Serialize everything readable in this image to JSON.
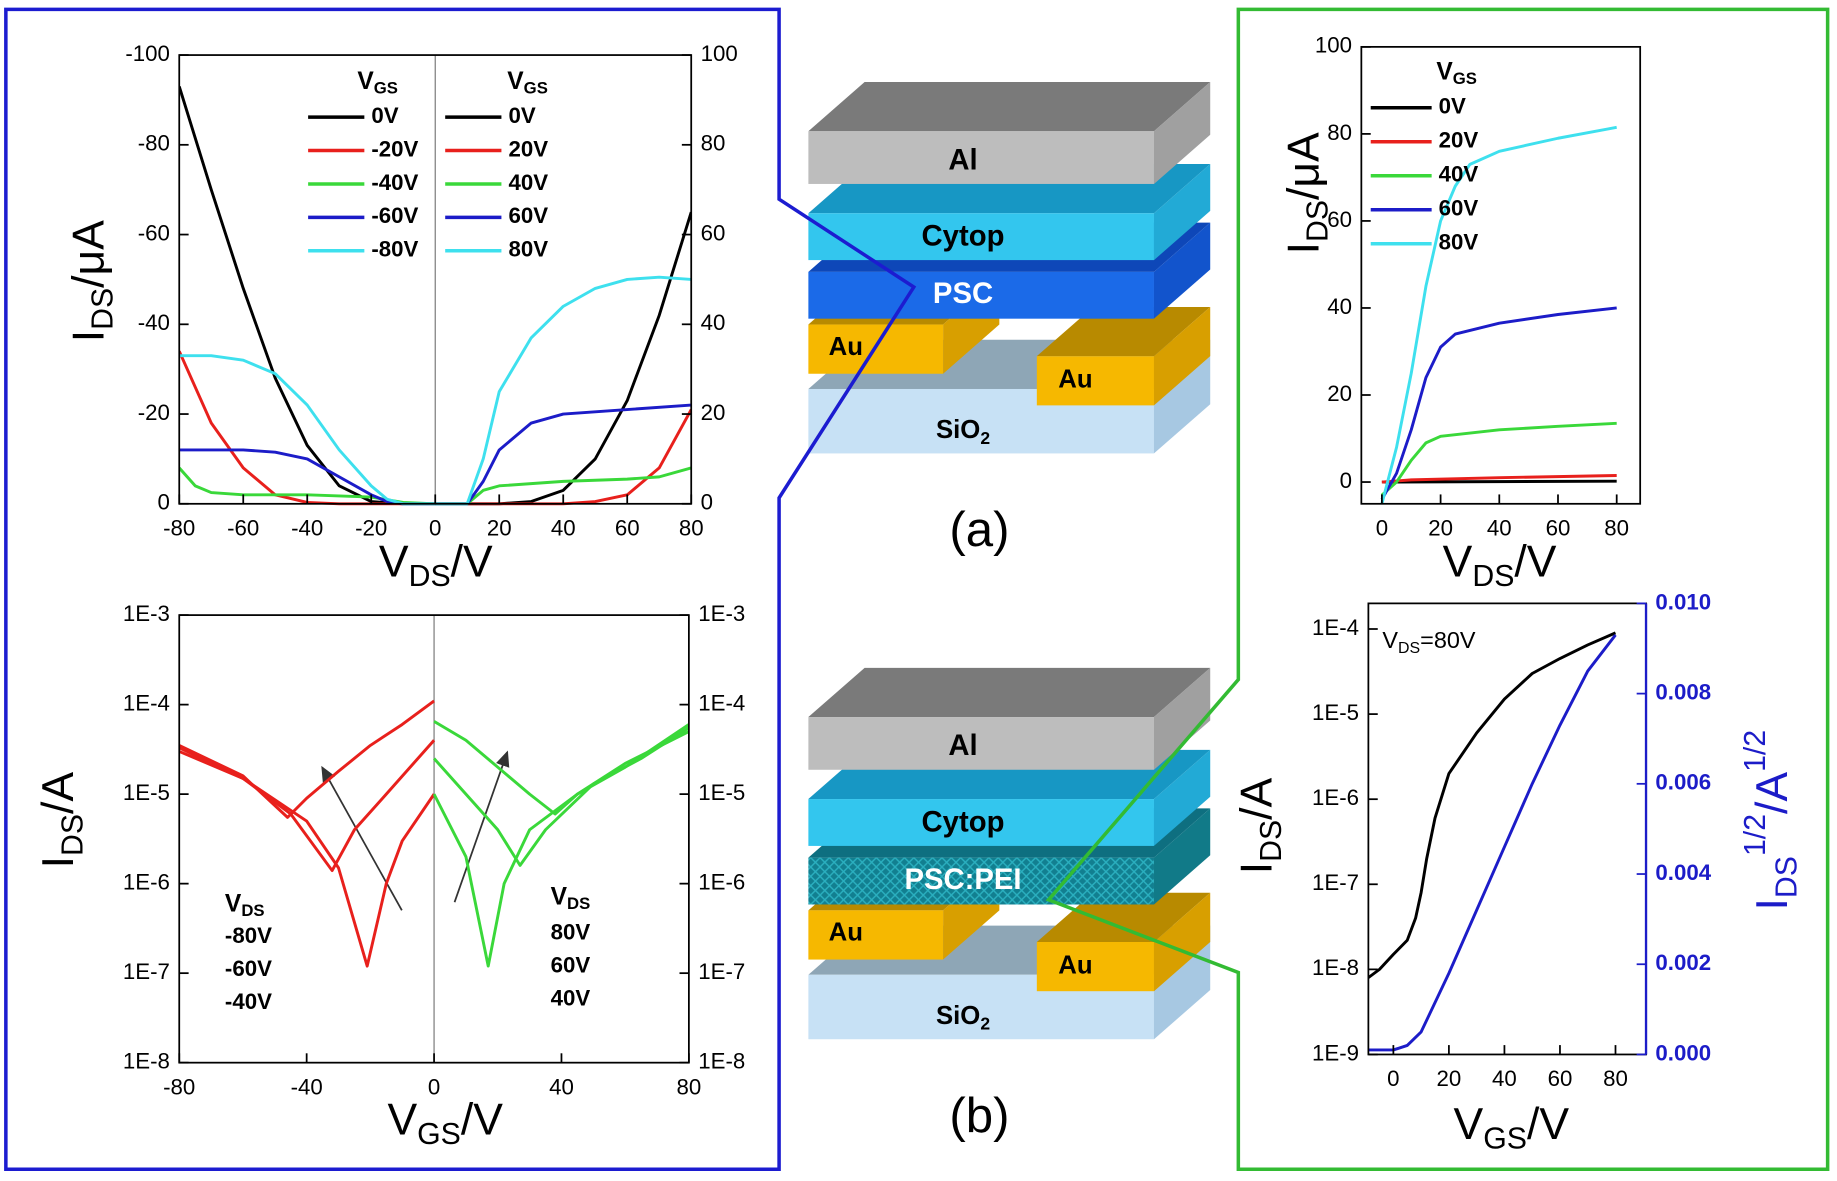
{
  "chart_data": [
    {
      "type": "line",
      "xlabel": [
        "V",
        "DS",
        "/V"
      ],
      "ylabel": [
        "I",
        "DS",
        "/μA"
      ],
      "xlim": [
        -80,
        80
      ],
      "ylim": [
        0,
        -100
      ],
      "y2lim": [
        0,
        100
      ],
      "xticks": [
        -80,
        -60,
        -40,
        -20,
        0,
        20,
        40,
        60,
        80
      ],
      "yticks": [
        0,
        -20,
        -40,
        -60,
        -80,
        -100
      ],
      "y2ticks": [
        0,
        20,
        40,
        60,
        80,
        100
      ],
      "center_line": true,
      "legend_titles": [
        [
          "V",
          "GS"
        ],
        [
          "V",
          "GS"
        ]
      ],
      "series": [
        {
          "name": "0V",
          "color": "#000000",
          "x": [
            -80,
            -70,
            -60,
            -50,
            -40,
            -30,
            -20,
            -10,
            0
          ],
          "values": [
            -93,
            -70,
            -48,
            -28,
            -13,
            -4,
            -0.5,
            0,
            0
          ]
        },
        {
          "name": "-20V",
          "color": "#e8201c",
          "x": [
            -80,
            -70,
            -60,
            -50,
            -40,
            -30,
            -20,
            0
          ],
          "values": [
            -34,
            -18,
            -8,
            -2,
            -0.3,
            0,
            0,
            0
          ]
        },
        {
          "name": "-40V",
          "color": "#3ad83a",
          "x": [
            -80,
            -75,
            -70,
            -60,
            -40,
            -20,
            -10,
            0
          ],
          "values": [
            -8,
            -4,
            -2.5,
            -2,
            -2,
            -1.5,
            -0.3,
            0
          ]
        },
        {
          "name": "-60V",
          "color": "#1c1cc8",
          "x": [
            -80,
            -60,
            -50,
            -40,
            -30,
            -20,
            -15,
            -10,
            0
          ],
          "values": [
            -12,
            -12,
            -11.5,
            -10,
            -6,
            -2,
            -0.5,
            0,
            0
          ]
        },
        {
          "name": "-80V",
          "color": "#3ee0ee",
          "x": [
            -80,
            -70,
            -60,
            -50,
            -40,
            -30,
            -20,
            -15,
            -10,
            0
          ],
          "values": [
            -33,
            -33,
            -32,
            -29,
            -22,
            -12,
            -4,
            -1,
            0,
            0
          ]
        },
        {
          "name": "0V",
          "color": "#000000",
          "axis": "y2",
          "x": [
            0,
            20,
            30,
            40,
            50,
            60,
            70,
            80
          ],
          "values": [
            0,
            0,
            0.5,
            3,
            10,
            23,
            42,
            65
          ]
        },
        {
          "name": "20V",
          "color": "#e8201c",
          "axis": "y2",
          "x": [
            0,
            40,
            50,
            60,
            70,
            80
          ],
          "values": [
            0,
            0,
            0.5,
            2,
            8,
            21
          ]
        },
        {
          "name": "40V",
          "color": "#3ad83a",
          "axis": "y2",
          "x": [
            0,
            10,
            15,
            20,
            40,
            60,
            70,
            80
          ],
          "values": [
            0,
            0,
            3,
            4,
            5,
            5.5,
            6,
            8
          ]
        },
        {
          "name": "60V",
          "color": "#1c1cc8",
          "axis": "y2",
          "x": [
            0,
            10,
            15,
            20,
            30,
            40,
            60,
            80
          ],
          "values": [
            0,
            0,
            5,
            12,
            18,
            20,
            21,
            22
          ]
        },
        {
          "name": "80V",
          "color": "#3ee0ee",
          "axis": "y2",
          "x": [
            0,
            10,
            15,
            20,
            30,
            40,
            50,
            60,
            70,
            80
          ],
          "values": [
            0,
            0,
            10,
            25,
            37,
            44,
            48,
            50,
            50.5,
            50
          ]
        }
      ]
    },
    {
      "type": "line",
      "yscale": "log",
      "y2scale": "log",
      "xlabel": [
        "V",
        "GS",
        "/V"
      ],
      "ylabel": [
        "I",
        "DS",
        "/A"
      ],
      "xlim": [
        -80,
        80
      ],
      "ylim": [
        1e-08,
        0.001
      ],
      "y2lim": [
        1e-08,
        0.001
      ],
      "xticks": [
        -80,
        -40,
        0,
        40,
        80
      ],
      "yticks": [
        {
          "value": 1e-08,
          "label": "1E-8"
        },
        {
          "value": 1e-07,
          "label": "1E-7"
        },
        {
          "value": 1e-06,
          "label": "1E-6"
        },
        {
          "value": 1e-05,
          "label": "1E-5"
        },
        {
          "value": 0.0001,
          "label": "1E-4"
        },
        {
          "value": 0.001,
          "label": "1E-3"
        }
      ],
      "y2ticks": [
        {
          "value": 1e-08,
          "label": "1E-8"
        },
        {
          "value": 1e-07,
          "label": "1E-7"
        },
        {
          "value": 1e-06,
          "label": "1E-6"
        },
        {
          "value": 1e-05,
          "label": "1E-5"
        },
        {
          "value": 0.0001,
          "label": "1E-4"
        },
        {
          "value": 0.001,
          "label": "1E-3"
        }
      ],
      "center_line": true,
      "legend_swatches": false,
      "legend_titles": [
        [
          "V",
          "DS"
        ],
        [
          "V",
          "DS"
        ]
      ],
      "series": [
        {
          "name": "-80V",
          "color": "#e8201c",
          "x": [
            -80,
            -60,
            -46,
            -40,
            -30,
            -20,
            -10,
            0
          ],
          "values": [
            3.5e-05,
            1.6e-05,
            5.5e-06,
            9e-06,
            1.8e-05,
            3.5e-05,
            6e-05,
            0.00011
          ]
        },
        {
          "name": "-60V",
          "color": "#e8201c",
          "x": [
            -80,
            -60,
            -45,
            -32,
            -25,
            -15,
            0
          ],
          "values": [
            3.3e-05,
            1.5e-05,
            6e-06,
            1.4e-06,
            4e-06,
            1e-05,
            4e-05
          ]
        },
        {
          "name": "-40V",
          "color": "#e8201c",
          "x": [
            -80,
            -60,
            -40,
            -30,
            -21,
            -15,
            -10,
            0
          ],
          "values": [
            3e-05,
            1.5e-05,
            5e-06,
            1.5e-06,
            1.2e-07,
            1e-06,
            3e-06,
            1e-05
          ]
        },
        {
          "name": "80V",
          "color": "#3ad83a",
          "x": [
            0,
            10,
            20,
            30,
            38,
            45,
            60,
            80
          ],
          "values": [
            6.5e-05,
            4e-05,
            2e-05,
            1e-05,
            6e-06,
            1e-05,
            2.2e-05,
            5e-05
          ]
        },
        {
          "name": "60V",
          "color": "#3ad83a",
          "x": [
            0,
            10,
            20,
            27,
            35,
            50,
            65,
            80
          ],
          "values": [
            2.5e-05,
            1e-05,
            4e-06,
            1.6e-06,
            4e-06,
            1.3e-05,
            2.5e-05,
            5.5e-05
          ]
        },
        {
          "name": "40V",
          "color": "#3ad83a",
          "x": [
            0,
            10,
            17,
            22,
            30,
            45,
            60,
            80
          ],
          "values": [
            1e-05,
            2e-06,
            1.2e-07,
            1e-06,
            4e-06,
            1e-05,
            2e-05,
            6e-05
          ]
        }
      ]
    },
    {
      "type": "line",
      "xlabel": [
        "V",
        "DS",
        "/V"
      ],
      "ylabel": [
        "I",
        "DS",
        "/μA"
      ],
      "xlim": [
        -7,
        88
      ],
      "ylim": [
        -5,
        100
      ],
      "xticks": [
        0,
        20,
        40,
        60,
        80
      ],
      "yticks": [
        0,
        20,
        40,
        60,
        80,
        100
      ],
      "legend_titles": [
        [
          "V",
          "GS"
        ]
      ],
      "series": [
        {
          "name": "0V",
          "color": "#000000",
          "x": [
            0,
            80
          ],
          "values": [
            0,
            0.2
          ]
        },
        {
          "name": "20V",
          "color": "#e8201c",
          "x": [
            0,
            10,
            40,
            80
          ],
          "values": [
            0,
            0.5,
            1,
            1.5
          ]
        },
        {
          "name": "40V",
          "color": "#3ad83a",
          "x": [
            0,
            5,
            10,
            15,
            20,
            40,
            60,
            80
          ],
          "values": [
            -3,
            0,
            5,
            9,
            10.5,
            12,
            12.8,
            13.5
          ]
        },
        {
          "name": "60V",
          "color": "#1c1cc8",
          "x": [
            0,
            5,
            10,
            15,
            20,
            25,
            40,
            60,
            80
          ],
          "values": [
            -4,
            2,
            12,
            24,
            31,
            34,
            36.5,
            38.5,
            40
          ]
        },
        {
          "name": "80V",
          "color": "#3ee0ee",
          "x": [
            0,
            5,
            10,
            15,
            20,
            25,
            30,
            40,
            60,
            80
          ],
          "values": [
            -5,
            8,
            25,
            45,
            60,
            68,
            73,
            76,
            79,
            81.5
          ]
        }
      ]
    },
    {
      "type": "line",
      "yscale": "log",
      "xlabel": [
        "V",
        "GS",
        "/V"
      ],
      "ylabel": [
        "I",
        "DS",
        "/A"
      ],
      "y2label": [
        "I",
        "DS",
        "1/2",
        "/A",
        "1/2"
      ],
      "y2_color": "#1c1cc8",
      "annotation": [
        "V",
        "DS",
        "=80V"
      ],
      "xlim": [
        -9,
        91
      ],
      "ylim": [
        1e-09,
        0.0002
      ],
      "y2lim": [
        0,
        0.01
      ],
      "xticks": [
        0,
        20,
        40,
        60,
        80
      ],
      "yticks": [
        {
          "value": 1e-09,
          "label": "1E-9"
        },
        {
          "value": 1e-08,
          "label": "1E-8"
        },
        {
          "value": 1e-07,
          "label": "1E-7"
        },
        {
          "value": 1e-06,
          "label": "1E-6"
        },
        {
          "value": 1e-05,
          "label": "1E-5"
        },
        {
          "value": 0.0001,
          "label": "1E-4"
        }
      ],
      "y2ticks": [
        {
          "value": 0,
          "label": "0.000"
        },
        0.002,
        0.004,
        0.006,
        0.008,
        {
          "value": 0.01,
          "label": "0.010"
        }
      ],
      "series": [
        {
          "color": "#000000",
          "x": [
            -9,
            -5,
            0,
            5,
            8,
            10,
            12,
            15,
            20,
            30,
            40,
            50,
            60,
            70,
            80
          ],
          "values": [
            8e-09,
            1e-08,
            1.5e-08,
            2.2e-08,
            4e-08,
            8e-08,
            2e-07,
            6e-07,
            2e-06,
            6e-06,
            1.5e-05,
            3e-05,
            4.5e-05,
            6.5e-05,
            9e-05
          ]
        },
        {
          "color": "#1c1cc8",
          "axis": "y2",
          "x": [
            -9,
            0,
            5,
            10,
            20,
            30,
            40,
            50,
            60,
            70,
            80
          ],
          "values": [
            0.0001,
            0.0001,
            0.0002,
            0.0005,
            0.0018,
            0.0032,
            0.0046,
            0.006,
            0.0073,
            0.0085,
            0.0093
          ]
        }
      ]
    }
  ],
  "diagrams": [
    {
      "caption": "(a)",
      "layers": [
        "Al",
        "Cytop",
        "PSC"
      ],
      "electrodes": [
        "Au",
        "Au"
      ],
      "substrate": [
        "SiO",
        "2"
      ]
    },
    {
      "caption": "(b)",
      "layers": [
        "Al",
        "Cytop",
        "PSC:PEI"
      ],
      "electrodes": [
        "Au",
        "Au"
      ],
      "substrate": [
        "SiO",
        "2"
      ]
    }
  ]
}
